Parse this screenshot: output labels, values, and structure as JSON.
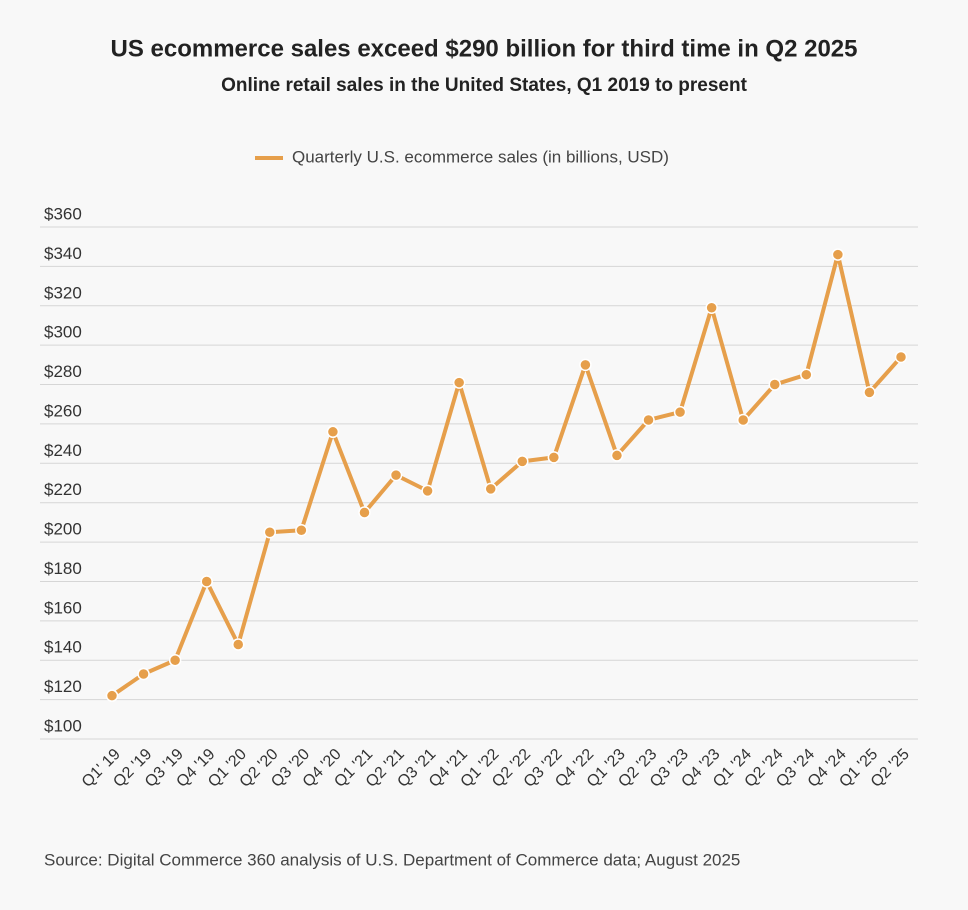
{
  "chart_data": {
    "type": "line",
    "title": "US ecommerce sales exceed $290 billion for third time in Q2 2025",
    "subtitle": "Online retail sales in the United States, Q1 2019 to present",
    "source": "Source: Digital Commerce 360 analysis of U.S. Department of Commerce data; August 2025",
    "categories": [
      "Q1' 19",
      "Q2 '19",
      "Q3 '19",
      "Q4 '19",
      "Q1 '20",
      "Q2 '20",
      "Q3 '20",
      "Q4 '20",
      "Q1 '21",
      "Q2 '21",
      "Q3 '21",
      "Q4 '21",
      "Q1 '22",
      "Q2 '22",
      "Q3 '22",
      "Q4 '22",
      "Q1 '23",
      "Q2 '23",
      "Q3 '23",
      "Q4 '23",
      "Q1 '24",
      "Q2 '24",
      "Q3 '24",
      "Q4 '24",
      "Q1 '25",
      "Q2 '25"
    ],
    "series": [
      {
        "name": "Quarterly U.S. ecommerce sales (in billions, USD)",
        "color": "#e69f4b",
        "values": [
          122,
          133,
          140,
          180,
          148,
          205,
          206,
          256,
          215,
          234,
          226,
          281,
          227,
          241,
          243,
          290,
          244,
          262,
          266,
          319,
          262,
          280,
          285,
          346,
          276,
          294
        ]
      }
    ],
    "ylim": [
      100,
      360
    ],
    "yticks": [
      {
        "value": 100,
        "label": "$100"
      },
      {
        "value": 120,
        "label": "$120"
      },
      {
        "value": 140,
        "label": "$140"
      },
      {
        "value": 160,
        "label": "$160"
      },
      {
        "value": 180,
        "label": "$180"
      },
      {
        "value": 200,
        "label": "$200"
      },
      {
        "value": 220,
        "label": "$220"
      },
      {
        "value": 240,
        "label": "$240"
      },
      {
        "value": 260,
        "label": "$260"
      },
      {
        "value": 280,
        "label": "$280"
      },
      {
        "value": 300,
        "label": "$300"
      },
      {
        "value": 320,
        "label": "$320"
      },
      {
        "value": 340,
        "label": "$340"
      },
      {
        "value": 360,
        "label": "$360"
      }
    ],
    "grid": true,
    "legend": "top"
  }
}
